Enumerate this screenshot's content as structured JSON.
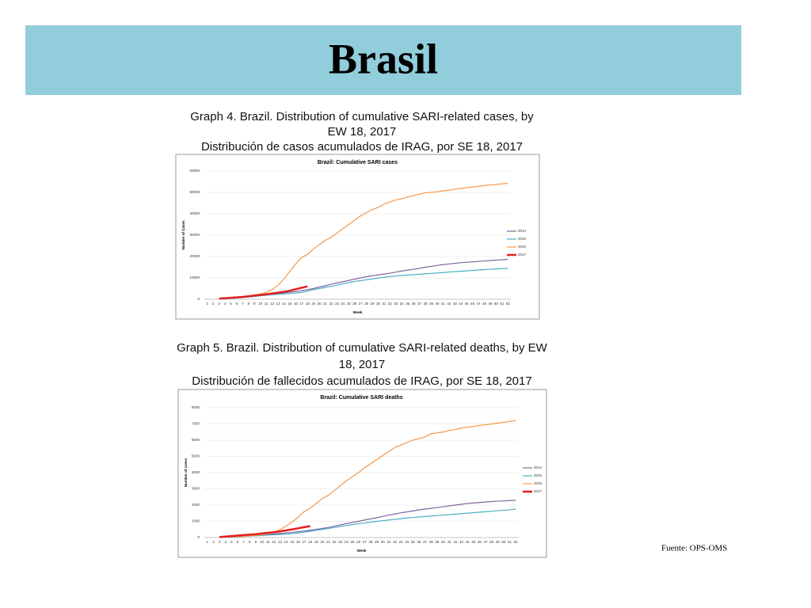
{
  "slide_title": "Brasil",
  "source": "Fuente: OPS-OMS",
  "chart_data": [
    {
      "type": "line",
      "caption": [
        "Graph 4. Brazil. Distribution of cumulative SARI-related cases, by",
        "EW 18, 2017",
        "Distribución de casos acumulados de IRAG, por SE 18, 2017"
      ],
      "title": "Brazil: Cumulative SARI cases",
      "xlabel": "Week",
      "ylabel": "Number of Cases",
      "categories": [
        "1",
        "2",
        "3",
        "4",
        "5",
        "6",
        "7",
        "8",
        "9",
        "10",
        "11",
        "12",
        "13",
        "14",
        "15",
        "16",
        "17",
        "18",
        "19",
        "20",
        "21",
        "22",
        "23",
        "24",
        "25",
        "26",
        "27",
        "28",
        "29",
        "30",
        "31",
        "32",
        "33",
        "34",
        "35",
        "36",
        "37",
        "38",
        "39",
        "40",
        "41",
        "42",
        "43",
        "44",
        "45",
        "46",
        "47",
        "48",
        "49",
        "50",
        "51",
        "52"
      ],
      "ylim": [
        0,
        60000
      ],
      "yticks": [
        0,
        10000,
        20000,
        30000,
        40000,
        50000,
        60000
      ],
      "legend": "right",
      "series": [
        {
          "name": "2014",
          "color": "#8064a2",
          "values": [
            null,
            null,
            200,
            300,
            500,
            700,
            900,
            1200,
            1500,
            1800,
            2100,
            2400,
            2700,
            3000,
            3300,
            3600,
            4000,
            4500,
            5000,
            5700,
            6300,
            7000,
            7600,
            8200,
            8800,
            9400,
            10000,
            10500,
            11000,
            11400,
            11800,
            12200,
            12700,
            13200,
            13600,
            14000,
            14500,
            15000,
            15400,
            15800,
            16200,
            16500,
            16800,
            17100,
            17300,
            17500,
            17700,
            17900,
            18100,
            18300,
            18500,
            18700
          ]
        },
        {
          "name": "2015",
          "color": "#4bacc6",
          "values": [
            null,
            null,
            200,
            300,
            400,
            600,
            800,
            1000,
            1300,
            1600,
            1900,
            2100,
            2300,
            2500,
            2700,
            2900,
            3200,
            3800,
            4500,
            5000,
            5500,
            6000,
            6600,
            7200,
            7800,
            8300,
            8700,
            9100,
            9500,
            9900,
            10300,
            10600,
            10900,
            11100,
            11300,
            11500,
            11700,
            11900,
            12100,
            12300,
            12500,
            12700,
            12900,
            13100,
            13300,
            13500,
            13700,
            13900,
            14000,
            14200,
            14300,
            14500
          ]
        },
        {
          "name": "2016",
          "color": "#f79646",
          "values": [
            null,
            null,
            200,
            400,
            600,
            900,
            1200,
            1600,
            2000,
            2500,
            3200,
            4500,
            6500,
            9500,
            13000,
            16500,
            19500,
            21000,
            23500,
            25500,
            27500,
            29000,
            31000,
            33000,
            35000,
            37000,
            39000,
            40500,
            42000,
            43000,
            44500,
            45500,
            46500,
            47000,
            47800,
            48500,
            49200,
            49800,
            50000,
            50300,
            50700,
            51000,
            51500,
            51800,
            52200,
            52500,
            52800,
            53200,
            53500,
            53700,
            54000,
            54200
          ]
        },
        {
          "name": "2017",
          "color": "#e0201f",
          "values": [
            null,
            null,
            300,
            500,
            700,
            900,
            1100,
            1400,
            1700,
            2000,
            2300,
            2700,
            3100,
            3500,
            4000,
            4700,
            5400,
            6000,
            null,
            null,
            null,
            null,
            null,
            null,
            null,
            null,
            null,
            null,
            null,
            null,
            null,
            null,
            null,
            null,
            null,
            null,
            null,
            null,
            null,
            null,
            null,
            null,
            null,
            null,
            null,
            null,
            null,
            null,
            null,
            null,
            null,
            null
          ]
        }
      ]
    },
    {
      "type": "line",
      "caption": [
        "Graph 5. Brazil. Distribution of cumulative SARI-related deaths, by EW",
        "18, 2017",
        "Distribución de fallecidos acumulados de IRAG, por SE 18, 2017"
      ],
      "title": "Brazil: Cumulative SARI deaths",
      "xlabel": "Week",
      "ylabel": "Number of cases",
      "categories": [
        "1",
        "2",
        "3",
        "4",
        "5",
        "6",
        "7",
        "8",
        "9",
        "10",
        "11",
        "12",
        "13",
        "14",
        "15",
        "16",
        "17",
        "18",
        "19",
        "20",
        "21",
        "22",
        "23",
        "24",
        "25",
        "26",
        "27",
        "28",
        "29",
        "30",
        "31",
        "32",
        "33",
        "34",
        "35",
        "36",
        "37",
        "38",
        "39",
        "40",
        "41",
        "42",
        "43",
        "44",
        "45",
        "46",
        "47",
        "48",
        "49",
        "50",
        "51",
        "52"
      ],
      "ylim": [
        0,
        8000
      ],
      "yticks": [
        0,
        1000,
        2000,
        3000,
        4000,
        5000,
        6000,
        7000,
        8000
      ],
      "legend": "right",
      "series": [
        {
          "name": "2014",
          "color": "#8064a2",
          "values": [
            null,
            null,
            20,
            30,
            40,
            60,
            80,
            100,
            130,
            160,
            190,
            220,
            250,
            280,
            320,
            360,
            400,
            450,
            500,
            560,
            620,
            700,
            780,
            860,
            930,
            1000,
            1080,
            1150,
            1220,
            1300,
            1380,
            1450,
            1520,
            1580,
            1640,
            1700,
            1750,
            1800,
            1850,
            1900,
            1950,
            2000,
            2050,
            2100,
            2130,
            2160,
            2190,
            2220,
            2240,
            2260,
            2280,
            2300
          ]
        },
        {
          "name": "2015",
          "color": "#4bacc6",
          "values": [
            null,
            null,
            20,
            30,
            40,
            50,
            70,
            90,
            110,
            130,
            150,
            170,
            190,
            210,
            240,
            280,
            330,
            390,
            450,
            500,
            560,
            620,
            680,
            740,
            800,
            850,
            900,
            950,
            1000,
            1040,
            1080,
            1120,
            1160,
            1200,
            1240,
            1270,
            1300,
            1330,
            1350,
            1380,
            1410,
            1440,
            1470,
            1500,
            1530,
            1560,
            1590,
            1620,
            1650,
            1680,
            1710,
            1750
          ]
        },
        {
          "name": "2016",
          "color": "#f79646",
          "values": [
            null,
            null,
            20,
            30,
            40,
            60,
            80,
            100,
            130,
            170,
            230,
            330,
            480,
            700,
            950,
            1250,
            1600,
            1800,
            2100,
            2400,
            2600,
            2900,
            3200,
            3500,
            3750,
            4000,
            4300,
            4550,
            4800,
            5050,
            5300,
            5550,
            5700,
            5850,
            6000,
            6100,
            6200,
            6400,
            6450,
            6500,
            6600,
            6650,
            6750,
            6800,
            6850,
            6900,
            6950,
            7000,
            7050,
            7100,
            7150,
            7200
          ]
        },
        {
          "name": "2017",
          "color": "#e0201f",
          "values": [
            null,
            null,
            30,
            60,
            90,
            120,
            150,
            180,
            210,
            250,
            290,
            330,
            380,
            440,
            500,
            570,
            640,
            700,
            null,
            null,
            null,
            null,
            null,
            null,
            null,
            null,
            null,
            null,
            null,
            null,
            null,
            null,
            null,
            null,
            null,
            null,
            null,
            null,
            null,
            null,
            null,
            null,
            null,
            null,
            null,
            null,
            null,
            null,
            null,
            null,
            null,
            null
          ]
        }
      ]
    }
  ]
}
